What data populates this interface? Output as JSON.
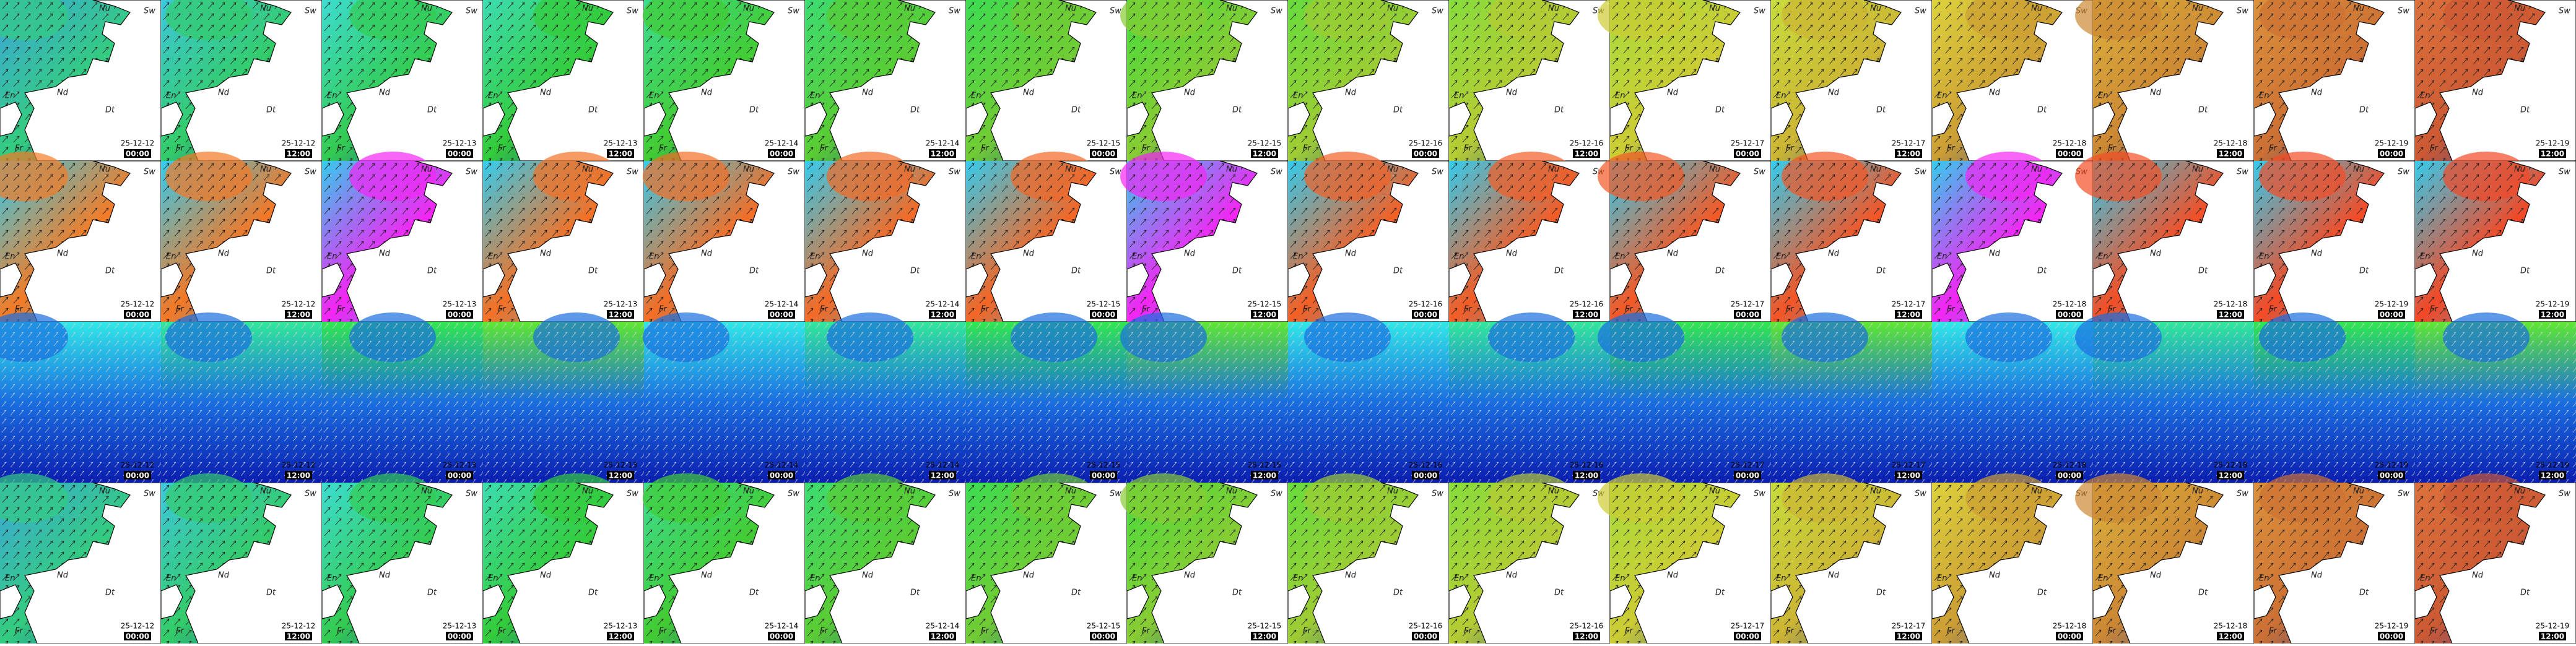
{
  "labels": {
    "north": "Nu",
    "east": "Sw",
    "center": "Nd",
    "south": "Dt",
    "west": "En",
    "southwest": "Fr"
  },
  "frames": [
    {
      "date": "25-12-12",
      "time": "00:00"
    },
    {
      "date": "25-12-12",
      "time": "12:00"
    },
    {
      "date": "25-12-13",
      "time": "00:00"
    },
    {
      "date": "25-12-13",
      "time": "12:00"
    },
    {
      "date": "25-12-14",
      "time": "00:00"
    },
    {
      "date": "25-12-14",
      "time": "12:00"
    },
    {
      "date": "25-12-15",
      "time": "00:00"
    },
    {
      "date": "25-12-15",
      "time": "12:00"
    },
    {
      "date": "25-12-16",
      "time": "00:00"
    },
    {
      "date": "25-12-16",
      "time": "12:00"
    },
    {
      "date": "25-12-17",
      "time": "00:00"
    },
    {
      "date": "25-12-17",
      "time": "12:00"
    },
    {
      "date": "25-12-18",
      "time": "00:00"
    },
    {
      "date": "25-12-18",
      "time": "12:00"
    },
    {
      "date": "25-12-19",
      "time": "00:00"
    },
    {
      "date": "25-12-19",
      "time": "12:00"
    }
  ]
}
